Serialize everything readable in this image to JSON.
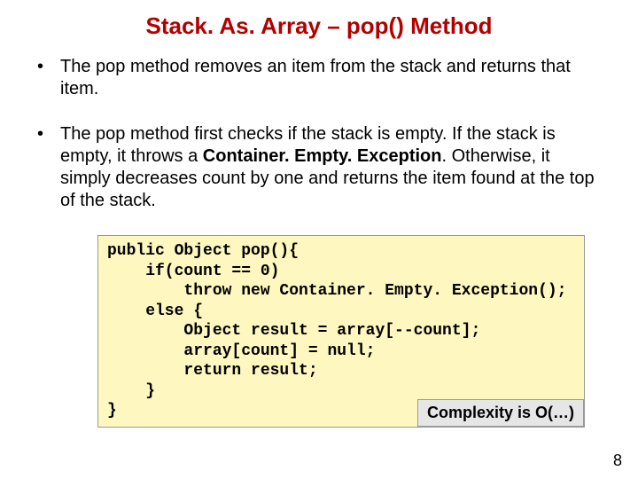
{
  "title": "Stack. As. Array – pop() Method",
  "bullets": [
    {
      "text": "The pop method removes an item from the stack and returns that item."
    },
    {
      "prefix": "The pop method first checks if the stack is empty. If the stack is empty, it throws a ",
      "bold": "Container. Empty. Exception",
      "suffix": ". Otherwise, it simply decreases count by one and returns the item found at the top of the stack."
    }
  ],
  "code": "public Object pop(){\n    if(count == 0)\n        throw new Container. Empty. Exception();\n    else {\n        Object result = array[--count];\n        array[count] = null;\n        return result;\n    }\n}",
  "complexity_label": "Complexity is O(…)",
  "page_number": "8",
  "colors": {
    "title": "#b30000",
    "text": "#000000",
    "code_bg": "#fff7c0",
    "code_border": "#999999",
    "complexity_bg": "#e6e6e6",
    "background": "#ffffff"
  },
  "fonts": {
    "body_family": "Arial",
    "body_size_pt": 15,
    "title_size_pt": 20,
    "code_family": "Courier New",
    "code_size_pt": 14
  }
}
